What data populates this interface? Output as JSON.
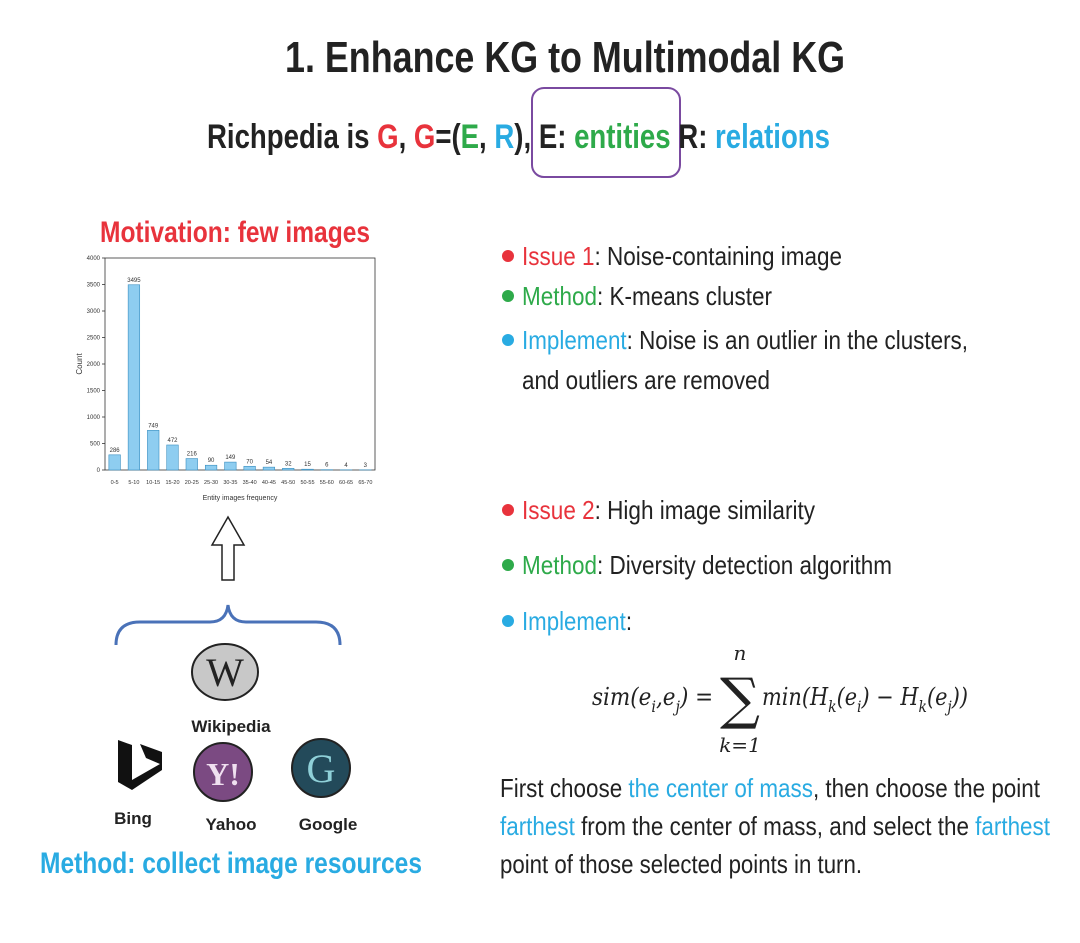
{
  "title": "1. Enhance KG to Multimodal KG",
  "subtitle": [
    {
      "text": "Richpedia is ",
      "color": "#222222"
    },
    {
      "text": "G",
      "color": "#e8333c"
    },
    {
      "text": ", ",
      "color": "#222222"
    },
    {
      "text": "G",
      "color": "#e8333c"
    },
    {
      "text": "=(",
      "color": "#222222"
    },
    {
      "text": "E",
      "color": "#2eaa4a"
    },
    {
      "text": ", ",
      "color": "#222222"
    },
    {
      "text": "R",
      "color": "#29abe2"
    },
    {
      "text": "), ",
      "color": "#222222"
    },
    {
      "text": "E: ",
      "color": "#222222"
    },
    {
      "text": "entities",
      "color": "#2eaa4a"
    },
    {
      "text": " R: ",
      "color": "#222222"
    },
    {
      "text": "relations",
      "color": "#29abe2"
    }
  ],
  "chart_data": {
    "type": "bar",
    "title": "Motivation: few images",
    "title_color": "#e8333c",
    "categories": [
      "0-5",
      "5-10",
      "10-15",
      "15-20",
      "20-25",
      "25-30",
      "30-35",
      "35-40",
      "40-45",
      "45-50",
      "50-55",
      "55-60",
      "60-65",
      "65-70"
    ],
    "values": [
      286,
      3495,
      749,
      472,
      216,
      90,
      149,
      70,
      54,
      32,
      15,
      6,
      4,
      3
    ],
    "color": "#8ecdf0",
    "xlabel": "Entity images frequency",
    "ylabel": "Count",
    "ylim": [
      0,
      4000
    ],
    "yticks": [
      0,
      500,
      1000,
      1500,
      2000,
      2500,
      3000,
      3500,
      4000
    ],
    "show_values": true
  },
  "issues": [
    [
      {
        "label": "Issue 1",
        "text": ": Noise-containing image",
        "color": "#e8333c"
      },
      {
        "label": "Method",
        "text": ": K-means cluster",
        "color": "#2eaa4a"
      },
      {
        "label": "Implement",
        "text": ": Noise is an outlier in the clusters,",
        "color": "#29abe2",
        "more": "and outliers are removed"
      }
    ],
    [
      {
        "label": "Issue 2",
        "text": ": High image similarity",
        "color": "#e8333c"
      },
      {
        "label": "Method",
        "text": ": Diversity detection algorithm",
        "color": "#2eaa4a"
      },
      {
        "label": "Implement",
        "text": ":",
        "color": "#29abe2"
      }
    ]
  ],
  "formula": {
    "left": [
      "sim",
      "(",
      "e",
      {
        "text": "i",
        "sub": true
      },
      ",",
      "e",
      {
        "text": "j",
        "sub": true
      },
      ")",
      " = "
    ],
    "sum": "∑",
    "upper": "n",
    "lower": "k=1",
    "right": [
      "min",
      "(",
      "H",
      {
        "text": "k",
        "sub": true
      },
      "(",
      "e",
      {
        "text": "i",
        "sub": true
      },
      ")",
      " − ",
      "H",
      {
        "text": "k",
        "sub": true
      },
      "(",
      "e",
      {
        "text": "j",
        "sub": true
      },
      "))"
    ]
  },
  "conclusion": [
    [
      {
        "text": "First choose ",
        "color": "#222222"
      },
      {
        "text": "the center of mass",
        "color": "#29abe2"
      },
      {
        "text": ", then choose the point",
        "color": "#222222"
      }
    ],
    [
      {
        "text": "farthest",
        "color": "#29abe2"
      },
      {
        "text": " from the center of mass, and select the ",
        "color": "#222222"
      },
      {
        "text": "farthest",
        "color": "#29abe2"
      }
    ],
    [
      {
        "text": "point of those selected points in turn.",
        "color": "#222222"
      }
    ]
  ],
  "sources": {
    "wikipedia": {
      "logo": "W",
      "label": "Wikipedia"
    },
    "bing": {
      "label": "Bing"
    },
    "yahoo": {
      "logo": "Y!",
      "label": "Yahoo"
    },
    "google": {
      "logo": "G",
      "label": "Google"
    },
    "caption": "Method: collect image resources"
  }
}
